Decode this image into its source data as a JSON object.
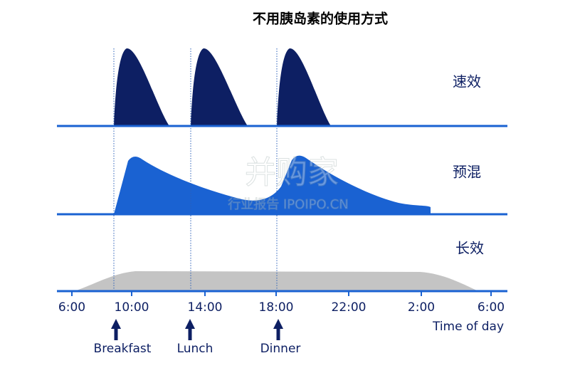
{
  "title": "不用胰岛素的使用方式",
  "rows": [
    {
      "label": "速效"
    },
    {
      "label": "预混"
    },
    {
      "label": "长效"
    }
  ],
  "x_axis": {
    "ticks": [
      "6:00",
      "10:00",
      "14:00",
      "18:00",
      "22:00",
      "2:00",
      "6:00"
    ],
    "title": "Time of day"
  },
  "meals": [
    "Breakfast",
    "Lunch",
    "Dinner"
  ],
  "watermark": {
    "name": "并购家",
    "subtitle": "行业报告 IPOIPO.CN"
  }
}
